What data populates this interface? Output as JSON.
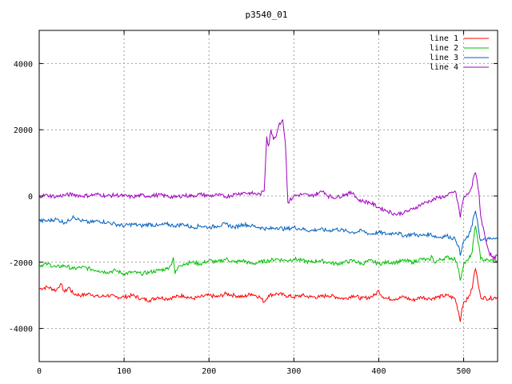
{
  "chart_data": {
    "type": "line",
    "title": "p3540_01",
    "xlabel": "",
    "ylabel": "",
    "xlim": [
      0,
      540
    ],
    "ylim": [
      -5000,
      5000
    ],
    "xticks": [
      0,
      100,
      200,
      300,
      400,
      500
    ],
    "yticks": [
      -4000,
      -2000,
      0,
      2000,
      4000
    ],
    "grid": true,
    "legend_position": "top-right",
    "series": [
      {
        "name": "line 1",
        "color": "#ff0000",
        "points": [
          [
            0,
            -2800
          ],
          [
            10,
            -2750
          ],
          [
            20,
            -2850
          ],
          [
            25,
            -2650
          ],
          [
            30,
            -2900
          ],
          [
            35,
            -2750
          ],
          [
            40,
            -2950
          ],
          [
            50,
            -3000
          ],
          [
            60,
            -2950
          ],
          [
            70,
            -3050
          ],
          [
            80,
            -3000
          ],
          [
            90,
            -3050
          ],
          [
            100,
            -3050
          ],
          [
            110,
            -3000
          ],
          [
            120,
            -3100
          ],
          [
            130,
            -3150
          ],
          [
            140,
            -3050
          ],
          [
            150,
            -3100
          ],
          [
            160,
            -3050
          ],
          [
            170,
            -3000
          ],
          [
            180,
            -3100
          ],
          [
            190,
            -3050
          ],
          [
            200,
            -3000
          ],
          [
            210,
            -3050
          ],
          [
            220,
            -2950
          ],
          [
            230,
            -3000
          ],
          [
            240,
            -3050
          ],
          [
            250,
            -2950
          ],
          [
            260,
            -3050
          ],
          [
            265,
            -3200
          ],
          [
            270,
            -3000
          ],
          [
            280,
            -2950
          ],
          [
            290,
            -3000
          ],
          [
            300,
            -3050
          ],
          [
            310,
            -3000
          ],
          [
            320,
            -3050
          ],
          [
            330,
            -3050
          ],
          [
            340,
            -3000
          ],
          [
            350,
            -3050
          ],
          [
            360,
            -3100
          ],
          [
            370,
            -3000
          ],
          [
            380,
            -3100
          ],
          [
            390,
            -3050
          ],
          [
            395,
            -3000
          ],
          [
            400,
            -2850
          ],
          [
            403,
            -3000
          ],
          [
            410,
            -3100
          ],
          [
            420,
            -3100
          ],
          [
            430,
            -3050
          ],
          [
            440,
            -3150
          ],
          [
            450,
            -3050
          ],
          [
            460,
            -3100
          ],
          [
            470,
            -3050
          ],
          [
            480,
            -3000
          ],
          [
            490,
            -3100
          ],
          [
            494,
            -3500
          ],
          [
            496,
            -3800
          ],
          [
            498,
            -3400
          ],
          [
            500,
            -3200
          ],
          [
            505,
            -3100
          ],
          [
            510,
            -2800
          ],
          [
            512,
            -2400
          ],
          [
            514,
            -2200
          ],
          [
            516,
            -2450
          ],
          [
            518,
            -2800
          ],
          [
            520,
            -3050
          ],
          [
            530,
            -3100
          ],
          [
            540,
            -3050
          ]
        ]
      },
      {
        "name": "line 2",
        "color": "#00c000",
        "points": [
          [
            0,
            -2100
          ],
          [
            10,
            -2050
          ],
          [
            20,
            -2150
          ],
          [
            30,
            -2100
          ],
          [
            40,
            -2200
          ],
          [
            50,
            -2150
          ],
          [
            60,
            -2200
          ],
          [
            70,
            -2250
          ],
          [
            80,
            -2300
          ],
          [
            90,
            -2250
          ],
          [
            100,
            -2350
          ],
          [
            110,
            -2300
          ],
          [
            120,
            -2350
          ],
          [
            130,
            -2300
          ],
          [
            140,
            -2250
          ],
          [
            150,
            -2200
          ],
          [
            155,
            -2100
          ],
          [
            158,
            -1850
          ],
          [
            160,
            -2350
          ],
          [
            165,
            -2100
          ],
          [
            170,
            -2050
          ],
          [
            180,
            -2000
          ],
          [
            190,
            -2050
          ],
          [
            200,
            -1950
          ],
          [
            210,
            -2000
          ],
          [
            220,
            -1900
          ],
          [
            230,
            -2000
          ],
          [
            240,
            -1950
          ],
          [
            250,
            -2050
          ],
          [
            260,
            -2000
          ],
          [
            270,
            -1950
          ],
          [
            280,
            -1900
          ],
          [
            290,
            -1950
          ],
          [
            300,
            -1900
          ],
          [
            310,
            -1950
          ],
          [
            320,
            -2000
          ],
          [
            330,
            -1950
          ],
          [
            340,
            -2000
          ],
          [
            350,
            -2050
          ],
          [
            360,
            -2000
          ],
          [
            370,
            -1950
          ],
          [
            380,
            -2050
          ],
          [
            390,
            -1950
          ],
          [
            400,
            -2050
          ],
          [
            410,
            -2000
          ],
          [
            420,
            -2000
          ],
          [
            430,
            -1950
          ],
          [
            440,
            -2000
          ],
          [
            450,
            -1900
          ],
          [
            460,
            -1950
          ],
          [
            462,
            -1800
          ],
          [
            465,
            -2000
          ],
          [
            470,
            -1950
          ],
          [
            480,
            -1850
          ],
          [
            490,
            -1900
          ],
          [
            494,
            -2200
          ],
          [
            496,
            -2550
          ],
          [
            498,
            -2300
          ],
          [
            500,
            -2050
          ],
          [
            505,
            -1950
          ],
          [
            510,
            -1700
          ],
          [
            512,
            -1250
          ],
          [
            514,
            -900
          ],
          [
            516,
            -1200
          ],
          [
            518,
            -1500
          ],
          [
            520,
            -1900
          ],
          [
            530,
            -1950
          ],
          [
            540,
            -1950
          ]
        ]
      },
      {
        "name": "line 3",
        "color": "#0060c0",
        "points": [
          [
            0,
            -750
          ],
          [
            10,
            -750
          ],
          [
            20,
            -700
          ],
          [
            30,
            -800
          ],
          [
            35,
            -750
          ],
          [
            40,
            -600
          ],
          [
            45,
            -700
          ],
          [
            50,
            -750
          ],
          [
            60,
            -800
          ],
          [
            70,
            -750
          ],
          [
            80,
            -800
          ],
          [
            90,
            -850
          ],
          [
            100,
            -900
          ],
          [
            110,
            -850
          ],
          [
            120,
            -900
          ],
          [
            130,
            -850
          ],
          [
            140,
            -900
          ],
          [
            150,
            -850
          ],
          [
            160,
            -900
          ],
          [
            170,
            -850
          ],
          [
            180,
            -950
          ],
          [
            190,
            -900
          ],
          [
            200,
            -950
          ],
          [
            210,
            -900
          ],
          [
            220,
            -850
          ],
          [
            230,
            -950
          ],
          [
            240,
            -850
          ],
          [
            250,
            -900
          ],
          [
            260,
            -950
          ],
          [
            270,
            -1000
          ],
          [
            280,
            -950
          ],
          [
            290,
            -1000
          ],
          [
            300,
            -950
          ],
          [
            310,
            -1000
          ],
          [
            320,
            -1050
          ],
          [
            330,
            -1000
          ],
          [
            340,
            -1050
          ],
          [
            350,
            -1000
          ],
          [
            360,
            -1050
          ],
          [
            370,
            -1100
          ],
          [
            380,
            -1050
          ],
          [
            390,
            -1150
          ],
          [
            400,
            -1100
          ],
          [
            410,
            -1150
          ],
          [
            420,
            -1100
          ],
          [
            430,
            -1200
          ],
          [
            440,
            -1150
          ],
          [
            450,
            -1200
          ],
          [
            460,
            -1150
          ],
          [
            470,
            -1250
          ],
          [
            480,
            -1200
          ],
          [
            490,
            -1300
          ],
          [
            494,
            -1500
          ],
          [
            496,
            -1800
          ],
          [
            498,
            -1600
          ],
          [
            500,
            -1350
          ],
          [
            505,
            -1250
          ],
          [
            510,
            -900
          ],
          [
            512,
            -600
          ],
          [
            514,
            -450
          ],
          [
            516,
            -700
          ],
          [
            518,
            -1100
          ],
          [
            520,
            -1350
          ],
          [
            530,
            -1300
          ],
          [
            540,
            -1300
          ]
        ]
      },
      {
        "name": "line 4",
        "color": "#a000c0",
        "points": [
          [
            0,
            0
          ],
          [
            10,
            20
          ],
          [
            20,
            -20
          ],
          [
            30,
            30
          ],
          [
            40,
            50
          ],
          [
            50,
            0
          ],
          [
            60,
            20
          ],
          [
            70,
            50
          ],
          [
            80,
            0
          ],
          [
            90,
            30
          ],
          [
            100,
            0
          ],
          [
            110,
            -30
          ],
          [
            120,
            20
          ],
          [
            130,
            0
          ],
          [
            140,
            30
          ],
          [
            150,
            0
          ],
          [
            160,
            -40
          ],
          [
            170,
            20
          ],
          [
            180,
            0
          ],
          [
            190,
            50
          ],
          [
            200,
            0
          ],
          [
            210,
            30
          ],
          [
            220,
            -20
          ],
          [
            230,
            50
          ],
          [
            240,
            100
          ],
          [
            250,
            80
          ],
          [
            260,
            50
          ],
          [
            265,
            150
          ],
          [
            268,
            1800
          ],
          [
            270,
            1500
          ],
          [
            273,
            2000
          ],
          [
            276,
            1700
          ],
          [
            280,
            1900
          ],
          [
            283,
            2200
          ],
          [
            287,
            2300
          ],
          [
            290,
            1600
          ],
          [
            293,
            -200
          ],
          [
            300,
            0
          ],
          [
            310,
            50
          ],
          [
            320,
            0
          ],
          [
            330,
            100
          ],
          [
            335,
            150
          ],
          [
            340,
            0
          ],
          [
            350,
            -50
          ],
          [
            360,
            50
          ],
          [
            370,
            100
          ],
          [
            375,
            -100
          ],
          [
            380,
            -150
          ],
          [
            390,
            -200
          ],
          [
            400,
            -350
          ],
          [
            410,
            -450
          ],
          [
            420,
            -550
          ],
          [
            430,
            -500
          ],
          [
            440,
            -400
          ],
          [
            450,
            -250
          ],
          [
            460,
            -150
          ],
          [
            470,
            -50
          ],
          [
            480,
            0
          ],
          [
            490,
            150
          ],
          [
            494,
            -300
          ],
          [
            496,
            -650
          ],
          [
            498,
            -300
          ],
          [
            500,
            -50
          ],
          [
            505,
            50
          ],
          [
            510,
            300
          ],
          [
            512,
            600
          ],
          [
            514,
            700
          ],
          [
            516,
            450
          ],
          [
            518,
            100
          ],
          [
            520,
            -600
          ],
          [
            525,
            -1200
          ],
          [
            530,
            -1700
          ],
          [
            535,
            -1900
          ],
          [
            540,
            -1800
          ]
        ]
      }
    ]
  }
}
